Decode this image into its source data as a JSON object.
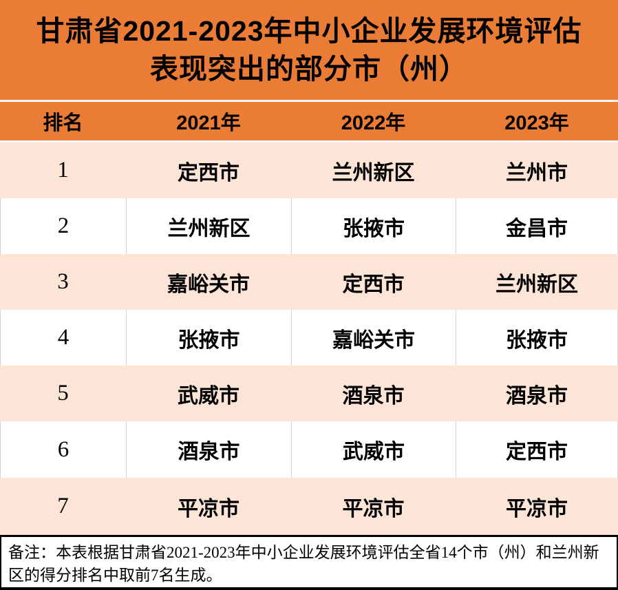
{
  "title": {
    "line1": "甘肃省2021-2023年中小企业发展环境评估",
    "line2": "表现突出的部分市（州）"
  },
  "table": {
    "headers": [
      "排名",
      "2021年",
      "2022年",
      "2023年"
    ],
    "rows": [
      {
        "rank": "1",
        "y2021": "定西市",
        "y2022": "兰州新区",
        "y2023": "兰州市"
      },
      {
        "rank": "2",
        "y2021": "兰州新区",
        "y2022": "张掖市",
        "y2023": "金昌市"
      },
      {
        "rank": "3",
        "y2021": "嘉峪关市",
        "y2022": "定西市",
        "y2023": "兰州新区"
      },
      {
        "rank": "4",
        "y2021": "张掖市",
        "y2022": "嘉峪关市",
        "y2023": "张掖市"
      },
      {
        "rank": "5",
        "y2021": "武威市",
        "y2022": "酒泉市",
        "y2023": "酒泉市"
      },
      {
        "rank": "6",
        "y2021": "酒泉市",
        "y2022": "武威市",
        "y2023": "定西市"
      },
      {
        "rank": "7",
        "y2021": "平凉市",
        "y2022": "平凉市",
        "y2023": "平凉市"
      }
    ]
  },
  "note": "备注：本表根据甘肃省2021-2023年中小企业发展环境评估全省14个市（州）和兰州新区的得分排名中取前7名生成。",
  "colors": {
    "orange": "#EA7C35",
    "peach": "#FCE4D6",
    "grid": "#D4D4D4",
    "text": "#000000",
    "border": "#000000"
  },
  "chart_data": {
    "type": "table",
    "title": "甘肃省2021-2023年中小企业发展环境评估表现突出的部分市（州）",
    "columns": [
      "排名",
      "2021年",
      "2022年",
      "2023年"
    ],
    "rows": [
      [
        "1",
        "定西市",
        "兰州新区",
        "兰州市"
      ],
      [
        "2",
        "兰州新区",
        "张掖市",
        "金昌市"
      ],
      [
        "3",
        "嘉峪关市",
        "定西市",
        "兰州新区"
      ],
      [
        "4",
        "张掖市",
        "嘉峪关市",
        "张掖市"
      ],
      [
        "5",
        "武威市",
        "酒泉市",
        "酒泉市"
      ],
      [
        "6",
        "酒泉市",
        "武威市",
        "定西市"
      ],
      [
        "7",
        "平凉市",
        "平凉市",
        "平凉市"
      ]
    ],
    "footnote": "备注：本表根据甘肃省2021-2023年中小企业发展环境评估全省14个市（州）和兰州新区的得分排名中取前7名生成。",
    "layout_hints": {
      "header_background": "#EA7C35",
      "odd_row_background": "#FCE4D6",
      "even_row_background": "#FFFFFF",
      "grid": "vertical-lines-on-white-rows-only"
    }
  }
}
